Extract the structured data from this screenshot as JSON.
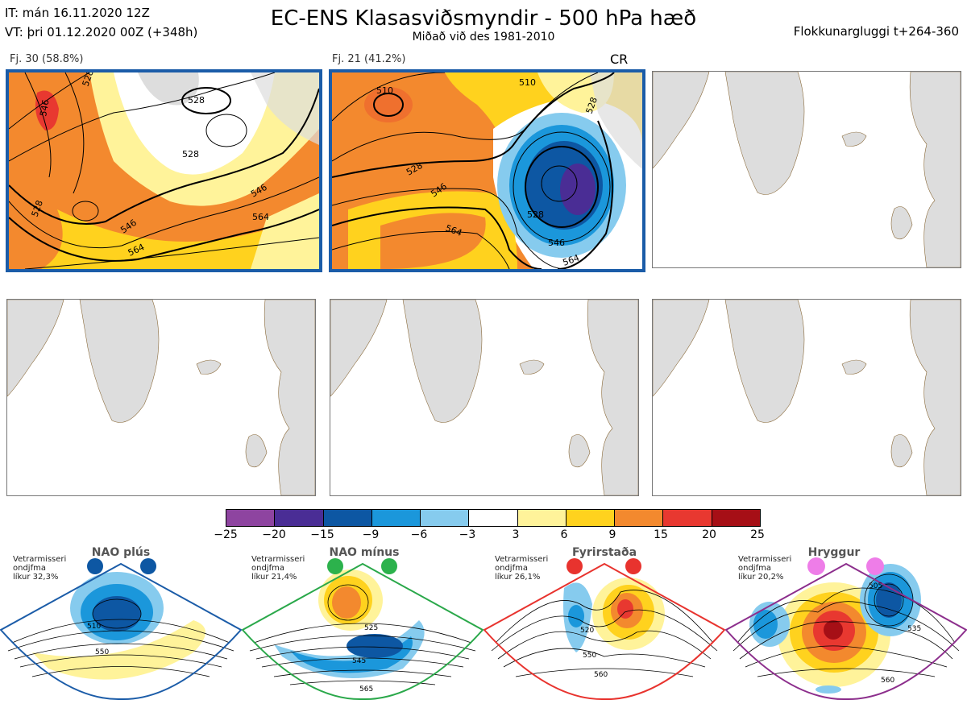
{
  "header": {
    "it_line": "IT: mán 16.11.2020 12Z",
    "vt_line": "VT: þri 01.12.2020 00Z  (+348h)",
    "title": "EC-ENS Klasasviðsmyndir - 500 hPa hæð",
    "subtitle": "Miðað við des 1981-2010",
    "window": "Flokkunargluggi t+264-360"
  },
  "clusters": [
    {
      "label": "Fj. 30 (58.8%)",
      "contours": [
        "528",
        "528",
        "528",
        "546",
        "564",
        "546",
        "564",
        "528",
        "546"
      ]
    },
    {
      "label": "Fj. 21 (41.2%)",
      "tag": "CR",
      "contours": [
        "510",
        "510",
        "528",
        "528",
        "546",
        "564",
        "528",
        "546",
        "564"
      ]
    }
  ],
  "colorbar": {
    "ticks": [
      "−25",
      "−20",
      "−15",
      "−9",
      "−6",
      "−3",
      "3",
      "6",
      "9",
      "15",
      "20",
      "25"
    ],
    "colors": [
      "#8e44a0",
      "#4a2d95",
      "#0d57a3",
      "#1b97db",
      "#86cbee",
      "#ffffff",
      "#fff39a",
      "#ffd21e",
      "#f3892e",
      "#e83830",
      "#a60f16"
    ]
  },
  "regimes": [
    {
      "title": "NAO plús",
      "note": [
        "Vetrarmisseri",
        "ondjfma",
        "líkur 32,3%"
      ],
      "color": "#1b5ca8",
      "dot_color": "#0d57a3",
      "contours": [
        "510",
        "550"
      ]
    },
    {
      "title": "NAO mínus",
      "note": [
        "Vetrarmisseri",
        "ondjfma",
        "líkur 21,4%"
      ],
      "color": "#2aa84a",
      "dot_color": "#2cb24c",
      "contours": [
        "525",
        "545",
        "565"
      ]
    },
    {
      "title": "Fyrirstaða",
      "note": [
        "Vetrarmisseri",
        "ondjfma",
        "líkur 26,1%"
      ],
      "color": "#e8332e",
      "dot_color": "#e8332e",
      "contours": [
        "520",
        "550",
        "560"
      ]
    },
    {
      "title": "Hryggur",
      "note": [
        "Vetrarmisseri",
        "ondjfma",
        "líkur 20,2%"
      ],
      "color": "#8c2e8c",
      "dot_color": "#ee7de8",
      "contours": [
        "505",
        "535",
        "560"
      ]
    }
  ]
}
